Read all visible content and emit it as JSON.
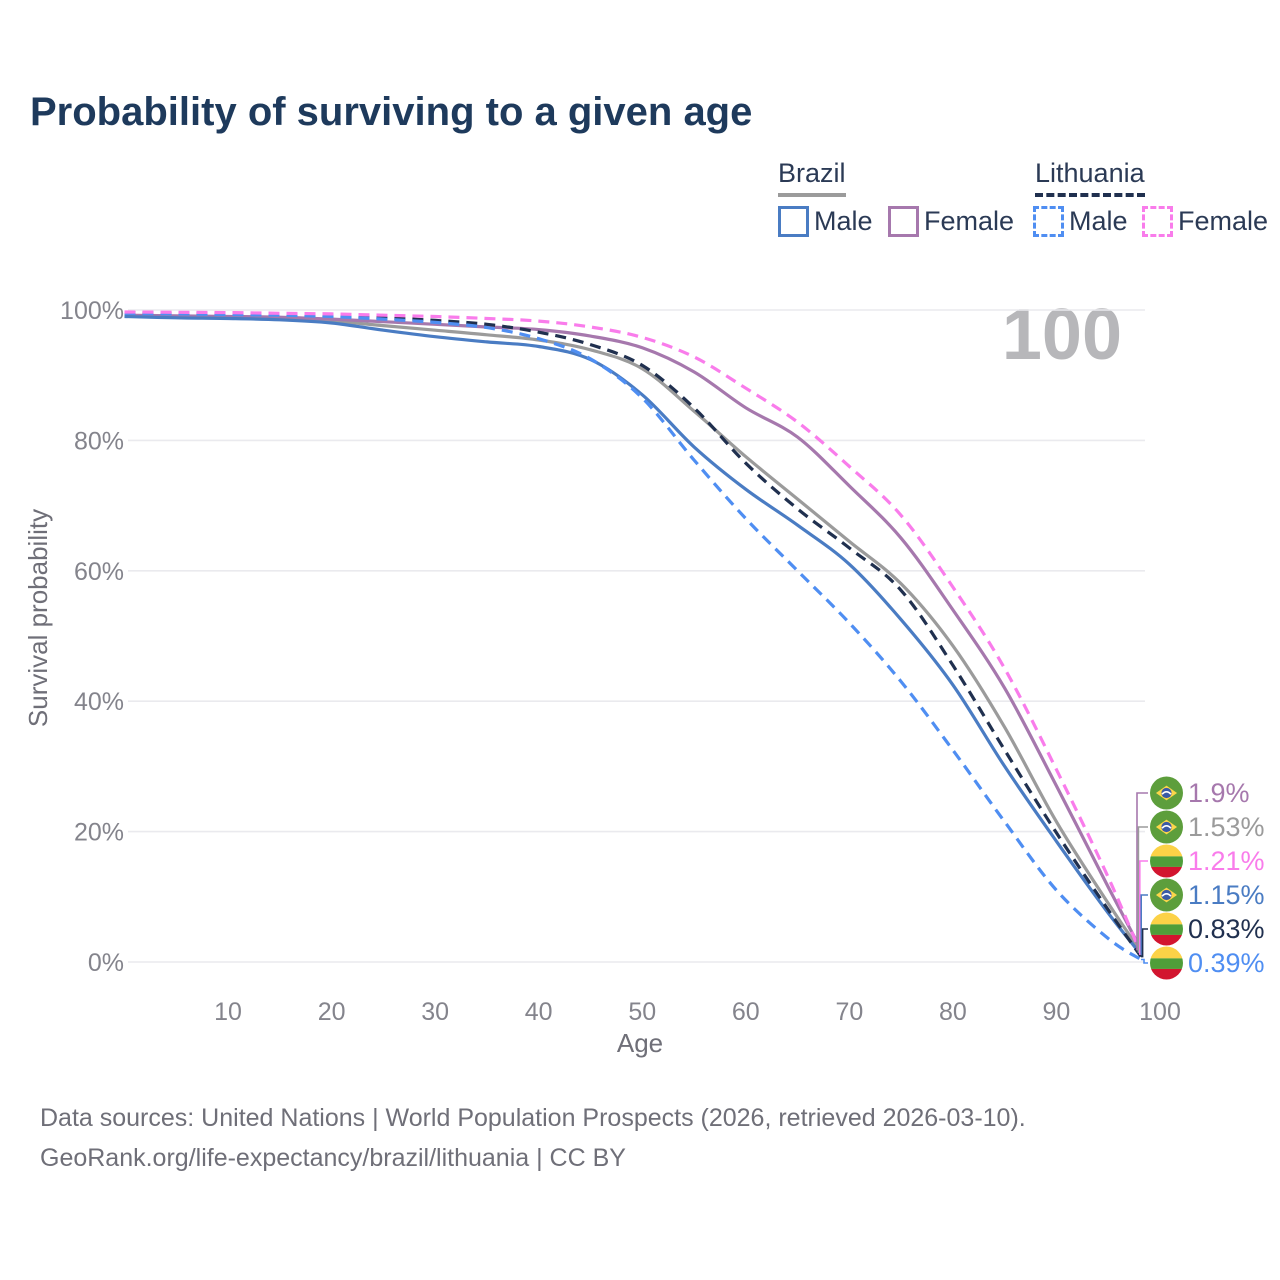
{
  "page": {
    "title": "Probability of surviving to a given age",
    "watermark": "100"
  },
  "legend": {
    "groups": [
      {
        "label": "Brazil",
        "underline_style": "solid",
        "underline_color": "#9b9b9b",
        "items": [
          {
            "label": "Male",
            "color": "#4a7cc3",
            "dash": false
          },
          {
            "label": "Female",
            "color": "#a678ad",
            "dash": false
          }
        ]
      },
      {
        "label": "Lithuania",
        "underline_style": "dashed",
        "underline_color": "#20304f",
        "items": [
          {
            "label": "Male",
            "color": "#4f8ef2",
            "dash": true
          },
          {
            "label": "Female",
            "color": "#f97ceb",
            "dash": true
          }
        ]
      }
    ]
  },
  "chart_data": {
    "type": "line",
    "title": "Probability of surviving to a given age",
    "xlabel": "Age",
    "ylabel": "Survival probability",
    "xlim": [
      0,
      100
    ],
    "ylim": [
      0,
      100
    ],
    "grid": "horizontal",
    "legend_position": "top-right",
    "x_ticks": [
      10,
      20,
      30,
      40,
      50,
      60,
      70,
      80,
      90,
      100
    ],
    "y_ticks": [
      0,
      20,
      40,
      60,
      80,
      100
    ],
    "y_tick_suffix": "%",
    "ages": [
      0,
      5,
      10,
      15,
      20,
      25,
      30,
      35,
      40,
      45,
      50,
      55,
      60,
      65,
      70,
      75,
      80,
      85,
      90,
      95,
      100
    ],
    "series": [
      {
        "name": "Brazil total",
        "country": "Brazil",
        "sex": "total",
        "flag": "br",
        "line": "solid",
        "color": "#9b9b9b",
        "end_label": "1.53%",
        "values": [
          99.1,
          98.95,
          98.85,
          98.65,
          98.3,
          97.6,
          96.9,
          96.2,
          95.4,
          93.9,
          91.0,
          84.5,
          77.5,
          71.0,
          64.5,
          58.0,
          48.5,
          36.0,
          21.5,
          9.0,
          1.53
        ]
      },
      {
        "name": "Brazil Female",
        "country": "Brazil",
        "sex": "female",
        "flag": "br",
        "line": "solid",
        "color": "#a678ad",
        "end_label": "1.9%",
        "values": [
          99.2,
          99.1,
          99.0,
          98.9,
          98.6,
          98.2,
          97.8,
          97.4,
          97.0,
          96.0,
          94.2,
          90.5,
          85.0,
          80.5,
          73.0,
          65.0,
          54.0,
          42.0,
          27.0,
          11.5,
          1.9
        ]
      },
      {
        "name": "Brazil Male",
        "country": "Brazil",
        "sex": "male",
        "flag": "br",
        "line": "solid",
        "color": "#4a7cc3",
        "end_label": "1.15%",
        "values": [
          99.0,
          98.8,
          98.7,
          98.5,
          98.0,
          96.9,
          95.9,
          95.1,
          94.4,
          92.4,
          87.0,
          79.0,
          72.5,
          67.0,
          61.0,
          52.5,
          42.5,
          30.0,
          18.5,
          7.5,
          1.15
        ]
      },
      {
        "name": "Lithuania total",
        "country": "Lithuania",
        "sex": "total",
        "flag": "lt",
        "line": "dashed",
        "color": "#20304f",
        "end_label": "0.83%",
        "values": [
          99.6,
          99.5,
          99.45,
          99.35,
          99.1,
          98.8,
          98.4,
          97.8,
          96.6,
          94.7,
          91.5,
          85.0,
          76.5,
          69.5,
          63.5,
          57.0,
          45.5,
          32.5,
          19.8,
          8.0,
          0.83
        ]
      },
      {
        "name": "Lithuania Male",
        "country": "Lithuania",
        "sex": "male",
        "flag": "lt",
        "line": "dashed",
        "color": "#4f8ef2",
        "end_label": "0.39%",
        "values": [
          99.5,
          99.4,
          99.3,
          99.2,
          99.0,
          98.6,
          98.1,
          97.3,
          95.6,
          92.5,
          86.5,
          77.0,
          68.0,
          60.0,
          52.0,
          43.0,
          32.5,
          21.5,
          11.0,
          3.6,
          0.39
        ]
      },
      {
        "name": "Lithuania Female",
        "country": "Lithuania",
        "sex": "female",
        "flag": "lt",
        "line": "dashed",
        "color": "#f97ceb",
        "end_label": "1.21%",
        "values": [
          99.7,
          99.65,
          99.6,
          99.5,
          99.4,
          99.2,
          99.0,
          98.7,
          98.3,
          97.4,
          95.8,
          92.8,
          88.0,
          82.8,
          76.0,
          68.5,
          57.5,
          45.0,
          29.5,
          13.0,
          1.21
        ]
      }
    ]
  },
  "footer": {
    "line1": "Data sources: United Nations | World Population Prospects (2026, retrieved 2026-03-10).",
    "line2": "GeoRank.org/life-expectancy/brazil/lithuania | CC BY"
  }
}
